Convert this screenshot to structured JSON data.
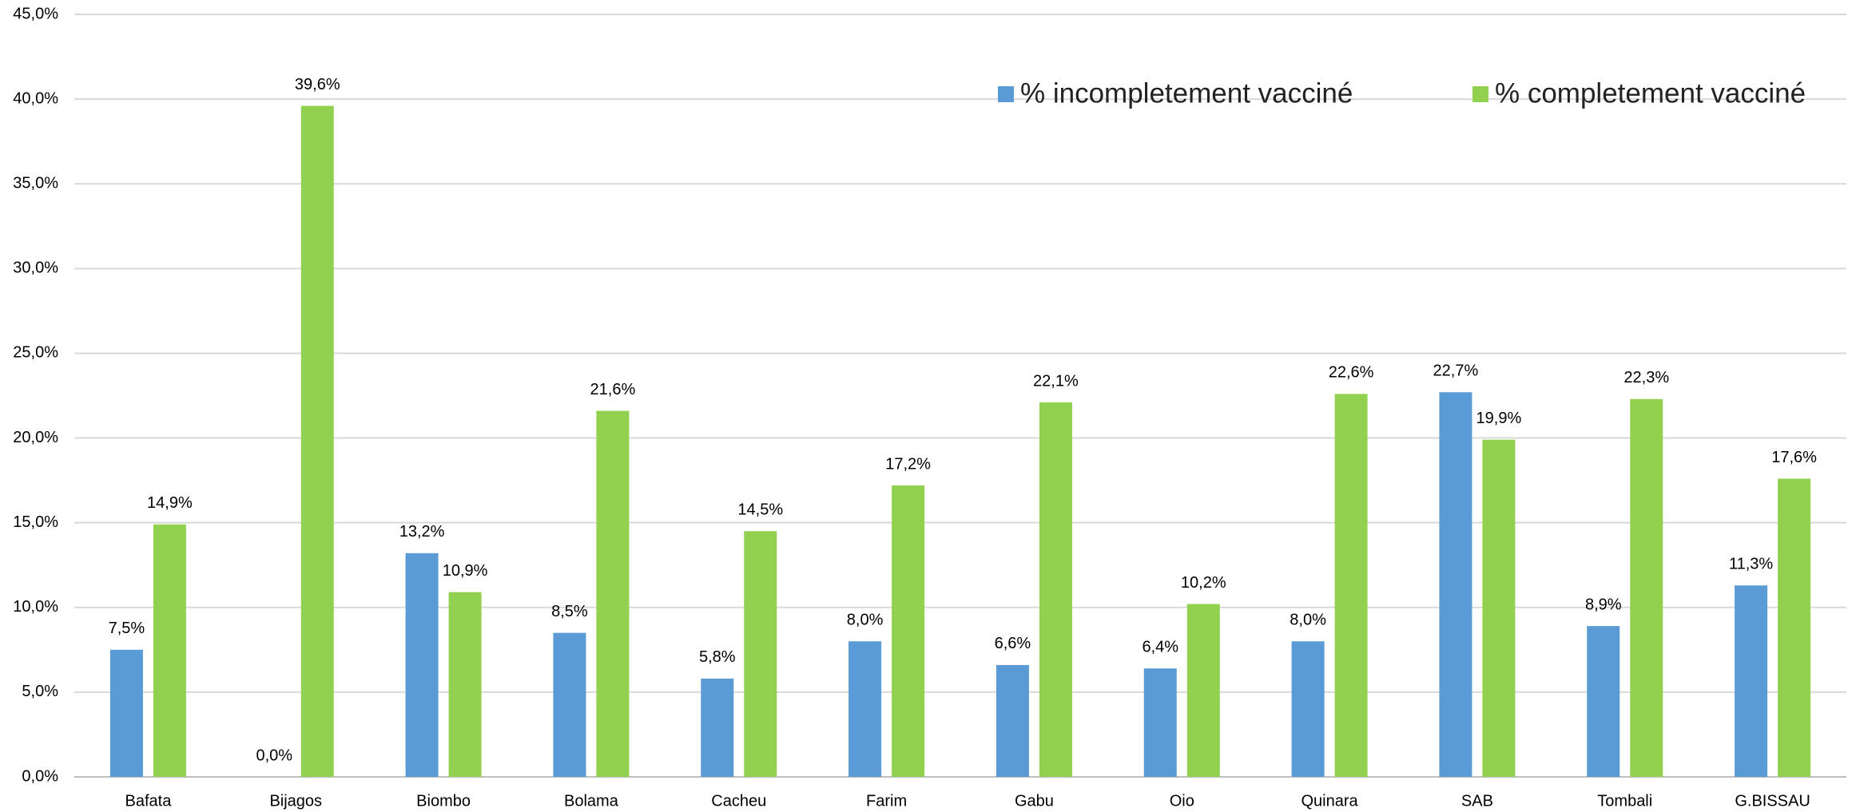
{
  "chart_data": {
    "type": "bar",
    "categories": [
      "Bafata",
      "Bijagos",
      "Biombo",
      "Bolama",
      "Cacheu",
      "Farim",
      "Gabu",
      "Oio",
      "Quinara",
      "SAB",
      "Tombali",
      "G.BISSAU"
    ],
    "series": [
      {
        "name": "% incompletement vacciné",
        "color": "#5b9bd5",
        "values": [
          7.5,
          0.0,
          13.2,
          8.5,
          5.8,
          8.0,
          6.6,
          6.4,
          8.0,
          22.7,
          8.9,
          11.3
        ],
        "value_labels": [
          "7,5%",
          "0,0%",
          "13,2%",
          "8,5%",
          "5,8%",
          "8,0%",
          "6,6%",
          "6,4%",
          "8,0%",
          "22,7%",
          "8,9%",
          "11,3%"
        ]
      },
      {
        "name": "% completement vacciné",
        "color": "#92d050",
        "values": [
          14.9,
          39.6,
          10.9,
          21.6,
          14.5,
          17.2,
          22.1,
          10.2,
          22.6,
          19.9,
          22.3,
          17.6
        ],
        "value_labels": [
          "14,9%",
          "39,6%",
          "10,9%",
          "21,6%",
          "14,5%",
          "17,2%",
          "22,1%",
          "10,2%",
          "22,6%",
          "19,9%",
          "22,3%",
          "17,6%"
        ]
      }
    ],
    "ylim": [
      0,
      45
    ],
    "yticks": [
      {
        "value": 0,
        "label": "0,0%"
      },
      {
        "value": 5,
        "label": "5,0%"
      },
      {
        "value": 10,
        "label": "10,0%"
      },
      {
        "value": 15,
        "label": "15,0%"
      },
      {
        "value": 20,
        "label": "20,0%"
      },
      {
        "value": 25,
        "label": "25,0%"
      },
      {
        "value": 30,
        "label": "30,0%"
      },
      {
        "value": 35,
        "label": "35,0%"
      },
      {
        "value": 40,
        "label": "40,0%"
      },
      {
        "value": 45,
        "label": "45,0%"
      }
    ],
    "grid": true,
    "legend": "top-right"
  }
}
